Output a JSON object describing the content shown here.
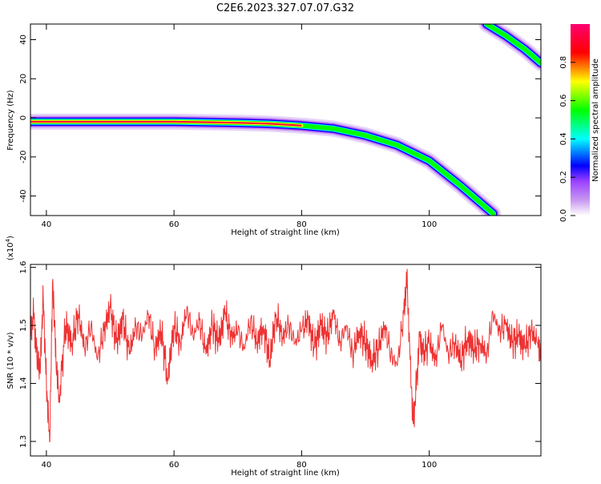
{
  "title": "C2E6.2023.327.07.07.G32",
  "colors": {
    "signal": "#ee3333",
    "axis": "#000000"
  },
  "chart_data": [
    {
      "type": "heatmap",
      "name": "spectrogram",
      "xlabel": "Height of straight line (km)",
      "ylabel": "Frequency (Hz)",
      "xlim": [
        37.5,
        117.5
      ],
      "ylim": [
        -50,
        48
      ],
      "xticks": [
        40,
        60,
        80,
        100
      ],
      "yticks": [
        -40,
        -20,
        0,
        20,
        40
      ],
      "colorbar": {
        "label": "Normalized spectral amplitude",
        "range": [
          0,
          1
        ],
        "ticks": [
          "0.0",
          "0.2",
          "0.4",
          "0.6",
          "0.8"
        ],
        "colormap": [
          "#ffffff",
          "#c898f0",
          "#9a40ff",
          "#0000ff",
          "#00ffff",
          "#00ff00",
          "#ffff00",
          "#ff0000",
          "#ff0070"
        ]
      },
      "tracks": [
        {
          "points": [
            [
              37.5,
              -2
            ],
            [
              50,
              -2
            ],
            [
              60,
              -2
            ],
            [
              70,
              -2.5
            ],
            [
              75,
              -3
            ],
            [
              80,
              -4
            ],
            [
              85,
              -5.5
            ],
            [
              90,
              -9
            ],
            [
              95,
              -14
            ],
            [
              100,
              -22
            ],
            [
              105,
              -35
            ],
            [
              110,
              -49
            ]
          ],
          "peak_amplitude": 0.9
        },
        {
          "points": [
            [
              109,
              48
            ],
            [
              112,
              42
            ],
            [
              115,
              35
            ],
            [
              117.5,
              28
            ]
          ],
          "peak_amplitude": 0.75
        }
      ]
    },
    {
      "type": "line",
      "name": "snr",
      "xlabel": "Height of straight line (km)",
      "ylabel": "SNR (10 * v/v)",
      "multiplier_label": "(x10",
      "multiplier_exp": "4",
      "xlim": [
        37.5,
        117.5
      ],
      "ylim": [
        1.275,
        1.605
      ],
      "xticks": [
        40,
        60,
        80,
        100
      ],
      "yticks": [
        1.3,
        1.4,
        1.5,
        1.6
      ],
      "series": [
        {
          "color": "#ee3333",
          "x": [
            37.5,
            38,
            38.5,
            39,
            39.5,
            40,
            40.5,
            41,
            41.5,
            42,
            43,
            44,
            45,
            46,
            47,
            48,
            49,
            50,
            51,
            52,
            53,
            54,
            55,
            56,
            57,
            58,
            59,
            60,
            61,
            62,
            63,
            64,
            65,
            66,
            67,
            68,
            69,
            70,
            71,
            72,
            73,
            74,
            75,
            76,
            77,
            78,
            79,
            80,
            81,
            82,
            83,
            84,
            85,
            86,
            87,
            88,
            89,
            90,
            91,
            92,
            93,
            94,
            95,
            96,
            96.5,
            97,
            97.5,
            98,
            98.5,
            99,
            100,
            101,
            102,
            103,
            104,
            105,
            106,
            107,
            108,
            109,
            110,
            111,
            112,
            113,
            114,
            115,
            116,
            117,
            117.5
          ],
          "y": [
            1.48,
            1.52,
            1.45,
            1.42,
            1.55,
            1.4,
            1.3,
            1.58,
            1.44,
            1.37,
            1.5,
            1.47,
            1.52,
            1.46,
            1.5,
            1.44,
            1.49,
            1.53,
            1.47,
            1.51,
            1.45,
            1.5,
            1.48,
            1.52,
            1.46,
            1.49,
            1.41,
            1.5,
            1.47,
            1.53,
            1.48,
            1.51,
            1.45,
            1.5,
            1.47,
            1.52,
            1.48,
            1.49,
            1.46,
            1.51,
            1.47,
            1.5,
            1.44,
            1.52,
            1.48,
            1.5,
            1.47,
            1.49,
            1.51,
            1.46,
            1.5,
            1.48,
            1.52,
            1.47,
            1.5,
            1.45,
            1.49,
            1.47,
            1.44,
            1.46,
            1.5,
            1.45,
            1.43,
            1.52,
            1.58,
            1.44,
            1.33,
            1.4,
            1.48,
            1.45,
            1.47,
            1.44,
            1.5,
            1.45,
            1.47,
            1.44,
            1.48,
            1.46,
            1.47,
            1.45,
            1.52,
            1.49,
            1.5,
            1.47,
            1.48,
            1.46,
            1.49,
            1.47,
            1.45
          ]
        }
      ]
    }
  ]
}
